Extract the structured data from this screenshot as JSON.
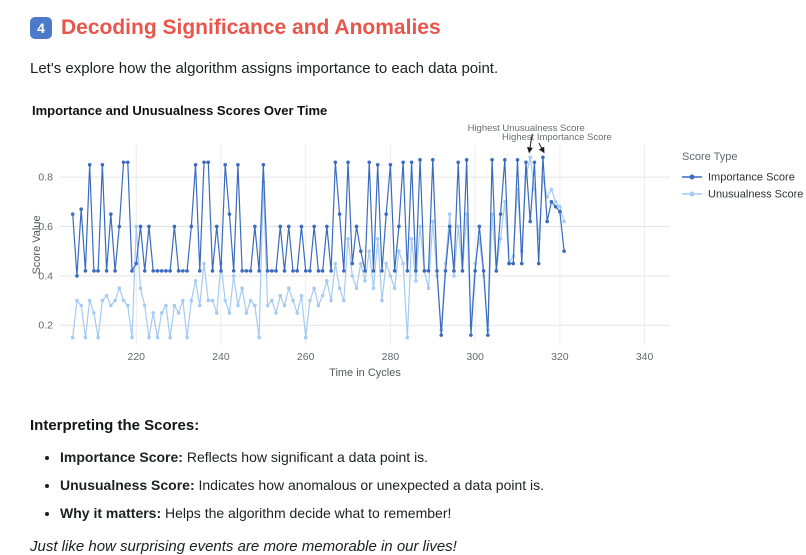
{
  "page": {
    "badge": "4",
    "title": "Decoding Significance and Anomalies",
    "intro": "Let's explore how the algorithm assigns importance to each data point.",
    "interpreting_heading": "Interpreting the Scores:",
    "bullets": [
      {
        "term": "Importance Score:",
        "text": " Reflects how significant a data point is."
      },
      {
        "term": "Unusualness Score:",
        "text": " Indicates how anomalous or unexpected a data point is."
      },
      {
        "term": "Why it matters:",
        "text": " Helps the algorithm decide what to remember!"
      }
    ],
    "footer_note": "Just like how surprising events are more memorable in our lives!"
  },
  "colors": {
    "heading_red": "#e8564b",
    "badge_blue": "#4a7ac9",
    "importance_blue": "#3a6bbf",
    "unusualness_blue": "#a5cbf2",
    "grid": "#e6e6e6",
    "axis_text": "#63676d"
  },
  "chart_data": {
    "type": "line",
    "title": "Importance and Unusualness Scores Over Time",
    "xlabel": "Time in Cycles",
    "ylabel": "Score Value",
    "legend_title": "Score Type",
    "legend_position": "right",
    "grid": true,
    "x_ticks": [
      220,
      240,
      260,
      280,
      300,
      320,
      340
    ],
    "y_ticks": [
      0.2,
      0.4,
      0.6,
      0.8
    ],
    "xlim": [
      202,
      346
    ],
    "ylim": [
      0.12,
      0.93
    ],
    "x_start": 205,
    "x_end": 321,
    "x_step": 1,
    "annotations": [
      {
        "label": "Highest Unusualness Score",
        "x": 313,
        "y": 0.88
      },
      {
        "label": "Highest Importance Score",
        "x": 316,
        "y": 0.88
      }
    ],
    "series": [
      {
        "name": "Importance Score",
        "color": "#3a6bbf",
        "values": [
          0.65,
          0.4,
          0.67,
          0.42,
          0.85,
          0.42,
          0.42,
          0.85,
          0.42,
          0.65,
          0.42,
          0.6,
          0.86,
          0.86,
          0.42,
          0.45,
          0.6,
          0.42,
          0.6,
          0.42,
          0.42,
          0.42,
          0.42,
          0.42,
          0.6,
          0.42,
          0.42,
          0.42,
          0.6,
          0.85,
          0.42,
          0.86,
          0.86,
          0.42,
          0.6,
          0.42,
          0.85,
          0.65,
          0.42,
          0.85,
          0.42,
          0.42,
          0.42,
          0.6,
          0.42,
          0.85,
          0.42,
          0.42,
          0.42,
          0.6,
          0.42,
          0.6,
          0.42,
          0.42,
          0.6,
          0.42,
          0.42,
          0.6,
          0.42,
          0.42,
          0.6,
          0.42,
          0.86,
          0.65,
          0.42,
          0.86,
          0.45,
          0.6,
          0.5,
          0.42,
          0.86,
          0.42,
          0.85,
          0.42,
          0.65,
          0.85,
          0.42,
          0.6,
          0.86,
          0.42,
          0.86,
          0.42,
          0.87,
          0.42,
          0.42,
          0.87,
          0.42,
          0.16,
          0.42,
          0.6,
          0.42,
          0.86,
          0.42,
          0.87,
          0.16,
          0.42,
          0.6,
          0.42,
          0.16,
          0.87,
          0.42,
          0.65,
          0.87,
          0.45,
          0.45,
          0.87,
          0.45,
          0.86,
          0.62,
          0.86,
          0.45,
          0.88,
          0.62,
          0.7,
          0.68,
          0.66,
          0.5
        ]
      },
      {
        "name": "Unusualness Score",
        "color": "#a5cbf2",
        "values": [
          0.15,
          0.3,
          0.28,
          0.15,
          0.3,
          0.25,
          0.15,
          0.3,
          0.32,
          0.28,
          0.3,
          0.35,
          0.3,
          0.28,
          0.15,
          0.6,
          0.35,
          0.28,
          0.15,
          0.25,
          0.15,
          0.25,
          0.28,
          0.15,
          0.28,
          0.25,
          0.3,
          0.15,
          0.3,
          0.38,
          0.28,
          0.45,
          0.3,
          0.3,
          0.25,
          0.45,
          0.3,
          0.25,
          0.4,
          0.28,
          0.35,
          0.25,
          0.3,
          0.28,
          0.15,
          0.78,
          0.28,
          0.3,
          0.25,
          0.32,
          0.28,
          0.35,
          0.3,
          0.25,
          0.32,
          0.15,
          0.3,
          0.35,
          0.28,
          0.32,
          0.38,
          0.3,
          0.45,
          0.35,
          0.3,
          0.55,
          0.4,
          0.35,
          0.45,
          0.38,
          0.5,
          0.35,
          0.55,
          0.3,
          0.45,
          0.4,
          0.35,
          0.5,
          0.45,
          0.15,
          0.55,
          0.38,
          0.6,
          0.42,
          0.35,
          0.62,
          0.4,
          0.18,
          0.45,
          0.65,
          0.4,
          0.6,
          0.42,
          0.65,
          0.2,
          0.45,
          0.55,
          0.4,
          0.18,
          0.65,
          0.42,
          0.55,
          0.7,
          0.45,
          0.48,
          0.75,
          0.5,
          0.8,
          0.88,
          0.75,
          0.55,
          0.8,
          0.72,
          0.75,
          0.7,
          0.68,
          0.62
        ]
      }
    ]
  }
}
